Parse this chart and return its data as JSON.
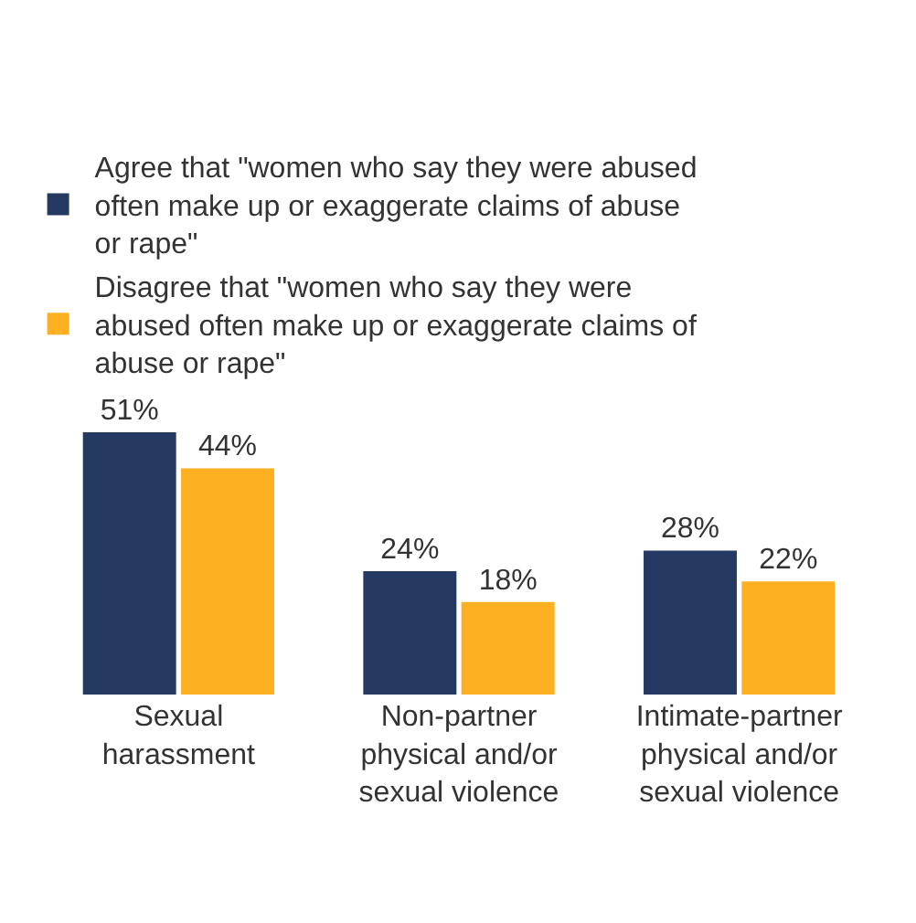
{
  "chart_data": {
    "type": "bar",
    "categories": [
      "Sexual harassment",
      "Non-partner physical and/or sexual violence",
      "Intimate-partner physical and/or sexual violence"
    ],
    "series": [
      {
        "name": "Agree that \"women who say they were abused often make up or exaggerate claims of abuse or rape\"",
        "color": "#253a63",
        "values": [
          51,
          24,
          28
        ],
        "value_labels": [
          "51%",
          "24%",
          "28%"
        ]
      },
      {
        "name": "Disagree that \"women who say they were abused often make up or exaggerate claims of abuse or rape\"",
        "color": "#fdb022",
        "values": [
          44,
          18,
          22
        ],
        "value_labels": [
          "44%",
          "18%",
          "22%"
        ]
      }
    ],
    "legend": "top left"
  }
}
